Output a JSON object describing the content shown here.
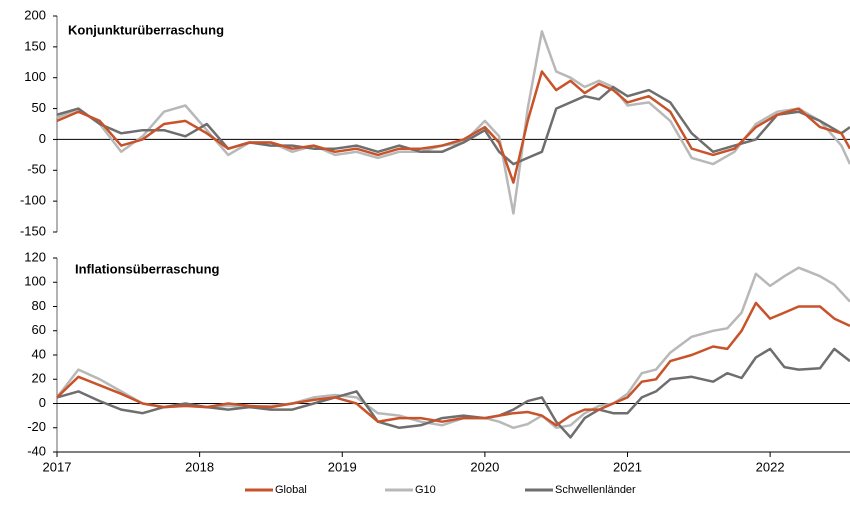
{
  "chart_data": [
    {
      "type": "line",
      "title": "Konjunkturüberraschung",
      "x": [
        2017,
        2017.15,
        2017.3,
        2017.45,
        2017.6,
        2017.75,
        2017.9,
        2018.05,
        2018.2,
        2018.35,
        2018.5,
        2018.65,
        2018.8,
        2018.95,
        2019.1,
        2019.25,
        2019.4,
        2019.55,
        2019.7,
        2019.85,
        2020.0,
        2020.1,
        2020.2,
        2020.3,
        2020.4,
        2020.5,
        2020.6,
        2020.7,
        2020.8,
        2020.9,
        2021.0,
        2021.15,
        2021.3,
        2021.45,
        2021.6,
        2021.75,
        2021.9,
        2022.05,
        2022.2,
        2022.35,
        2022.5,
        2022.56
      ],
      "series": [
        {
          "name": "G10",
          "color": "#b8b8b8",
          "values": [
            35,
            50,
            25,
            -20,
            5,
            45,
            55,
            15,
            -25,
            -5,
            -5,
            -20,
            -10,
            -25,
            -20,
            -30,
            -20,
            -20,
            -10,
            -5,
            30,
            5,
            -120,
            50,
            175,
            110,
            100,
            85,
            95,
            85,
            55,
            60,
            30,
            -30,
            -40,
            -20,
            25,
            45,
            50,
            30,
            -10,
            -40
          ]
        },
        {
          "name": "Schwellenländer",
          "color": "#6e6e6e",
          "values": [
            40,
            50,
            25,
            10,
            15,
            15,
            5,
            25,
            -15,
            -5,
            -10,
            -10,
            -15,
            -15,
            -10,
            -20,
            -10,
            -20,
            -20,
            -5,
            15,
            -20,
            -40,
            -30,
            -20,
            50,
            60,
            70,
            65,
            85,
            70,
            80,
            60,
            10,
            -20,
            -10,
            0,
            40,
            45,
            30,
            10,
            20
          ]
        },
        {
          "name": "Global",
          "color": "#c8532a",
          "values": [
            30,
            45,
            30,
            -10,
            0,
            25,
            30,
            10,
            -15,
            -5,
            -5,
            -15,
            -10,
            -20,
            -15,
            -25,
            -15,
            -15,
            -10,
            0,
            20,
            -5,
            -70,
            30,
            110,
            80,
            95,
            75,
            90,
            80,
            60,
            70,
            45,
            -15,
            -25,
            -15,
            20,
            40,
            50,
            20,
            10,
            -15
          ]
        }
      ],
      "xlim": [
        2017,
        2022.56
      ],
      "ylim": [
        -150,
        200
      ],
      "yticks": [
        -150,
        -100,
        -50,
        0,
        50,
        100,
        150,
        200
      ]
    },
    {
      "type": "line",
      "title": "Inflationsüberraschung",
      "x": [
        2017,
        2017.15,
        2017.3,
        2017.45,
        2017.6,
        2017.75,
        2017.9,
        2018.05,
        2018.2,
        2018.35,
        2018.5,
        2018.65,
        2018.8,
        2018.95,
        2019.1,
        2019.25,
        2019.4,
        2019.55,
        2019.7,
        2019.85,
        2020.0,
        2020.1,
        2020.2,
        2020.3,
        2020.4,
        2020.5,
        2020.6,
        2020.7,
        2020.8,
        2020.9,
        2021.0,
        2021.1,
        2021.2,
        2021.3,
        2021.45,
        2021.6,
        2021.7,
        2021.8,
        2021.9,
        2022.0,
        2022.1,
        2022.2,
        2022.35,
        2022.45,
        2022.56
      ],
      "series": [
        {
          "name": "G10",
          "color": "#b8b8b8",
          "values": [
            5,
            28,
            20,
            10,
            0,
            -3,
            -2,
            -3,
            -2,
            -3,
            -2,
            0,
            5,
            7,
            5,
            -8,
            -10,
            -15,
            -18,
            -12,
            -12,
            -15,
            -20,
            -17,
            -10,
            -20,
            -18,
            -8,
            -2,
            0,
            8,
            25,
            28,
            42,
            55,
            60,
            62,
            75,
            107,
            97,
            105,
            112,
            105,
            98,
            84
          ]
        },
        {
          "name": "Schwellenländer",
          "color": "#6e6e6e",
          "values": [
            5,
            10,
            2,
            -5,
            -8,
            -3,
            0,
            -3,
            -5,
            -3,
            -5,
            -5,
            0,
            5,
            10,
            -15,
            -20,
            -18,
            -12,
            -10,
            -12,
            -10,
            -5,
            2,
            5,
            -15,
            -28,
            -12,
            -5,
            -8,
            -8,
            5,
            10,
            20,
            22,
            18,
            25,
            21,
            38,
            45,
            30,
            28,
            29,
            45,
            35
          ]
        },
        {
          "name": "Global",
          "color": "#c8532a",
          "values": [
            5,
            22,
            15,
            8,
            0,
            -3,
            -2,
            -3,
            0,
            -2,
            -3,
            0,
            3,
            5,
            0,
            -15,
            -12,
            -12,
            -15,
            -12,
            -12,
            -10,
            -8,
            -7,
            -10,
            -18,
            -10,
            -5,
            -5,
            0,
            5,
            18,
            20,
            35,
            40,
            47,
            45,
            60,
            83,
            70,
            75,
            80,
            80,
            70,
            64
          ]
        }
      ],
      "xlim": [
        2017,
        2022.56
      ],
      "xticks": [
        2017,
        2018,
        2019,
        2020,
        2021,
        2022
      ],
      "ylim": [
        -40,
        120
      ],
      "yticks": [
        -40,
        -20,
        0,
        20,
        40,
        60,
        80,
        100,
        120
      ],
      "legend": "bottom",
      "legend_order": [
        2,
        0,
        1
      ]
    }
  ]
}
